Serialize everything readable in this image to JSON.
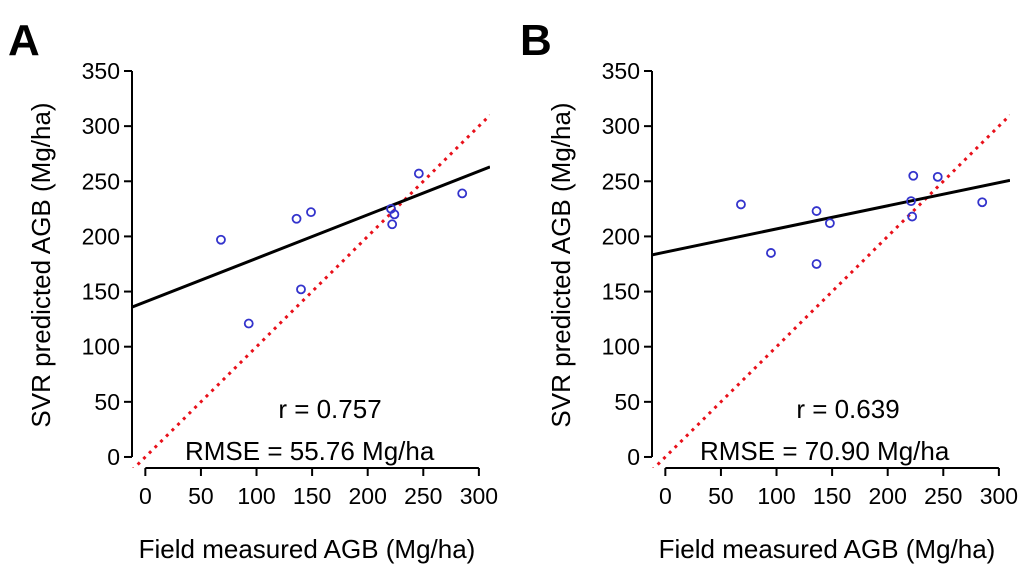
{
  "figure": {
    "panels": [
      "A",
      "B"
    ]
  },
  "colors": {
    "axis": "#000000",
    "points": "#3333cc",
    "fit_line": "#000000",
    "identity_line": "#e8101a",
    "r_text": "#e8101a"
  },
  "chart_data": [
    {
      "panel": "A",
      "type": "scatter",
      "xlabel": "Field measured AGB (Mg/ha)",
      "ylabel": "SVR predicted AGB (Mg/ha)",
      "xlim": [
        -12,
        310
      ],
      "ylim": [
        -10,
        350
      ],
      "xticks": [
        0,
        50,
        100,
        150,
        200,
        250,
        300
      ],
      "yticks": [
        0,
        50,
        100,
        150,
        200,
        250,
        300,
        350
      ],
      "points": [
        {
          "x": 68,
          "y": 197
        },
        {
          "x": 93,
          "y": 121
        },
        {
          "x": 136,
          "y": 216
        },
        {
          "x": 140,
          "y": 152
        },
        {
          "x": 149,
          "y": 222
        },
        {
          "x": 221,
          "y": 225
        },
        {
          "x": 224,
          "y": 220
        },
        {
          "x": 222,
          "y": 211
        },
        {
          "x": 246,
          "y": 257
        },
        {
          "x": 285,
          "y": 239
        }
      ],
      "fit_line": {
        "intercept": 140.6,
        "slope": 0.395
      },
      "identity_line": true,
      "r_label": "r = 0.757",
      "rmse_label": "RMSE =  55.76 Mg/ha"
    },
    {
      "panel": "B",
      "type": "scatter",
      "xlabel": "Field measured AGB (Mg/ha)",
      "ylabel": "SVR predicted AGB (Mg/ha)",
      "xlim": [
        -12,
        310
      ],
      "ylim": [
        -10,
        350
      ],
      "xticks": [
        0,
        50,
        100,
        150,
        200,
        250,
        300
      ],
      "yticks": [
        0,
        50,
        100,
        150,
        200,
        250,
        300,
        350
      ],
      "points": [
        {
          "x": 68,
          "y": 229
        },
        {
          "x": 95,
          "y": 185
        },
        {
          "x": 136,
          "y": 223
        },
        {
          "x": 136,
          "y": 175
        },
        {
          "x": 148,
          "y": 212
        },
        {
          "x": 221,
          "y": 232
        },
        {
          "x": 223,
          "y": 255
        },
        {
          "x": 222,
          "y": 218
        },
        {
          "x": 245,
          "y": 254
        },
        {
          "x": 285,
          "y": 231
        }
      ],
      "fit_line": {
        "intercept": 185.8,
        "slope": 0.21
      },
      "identity_line": true,
      "r_label": "r = 0.639",
      "rmse_label": "RMSE =  70.90 Mg/ha"
    }
  ]
}
